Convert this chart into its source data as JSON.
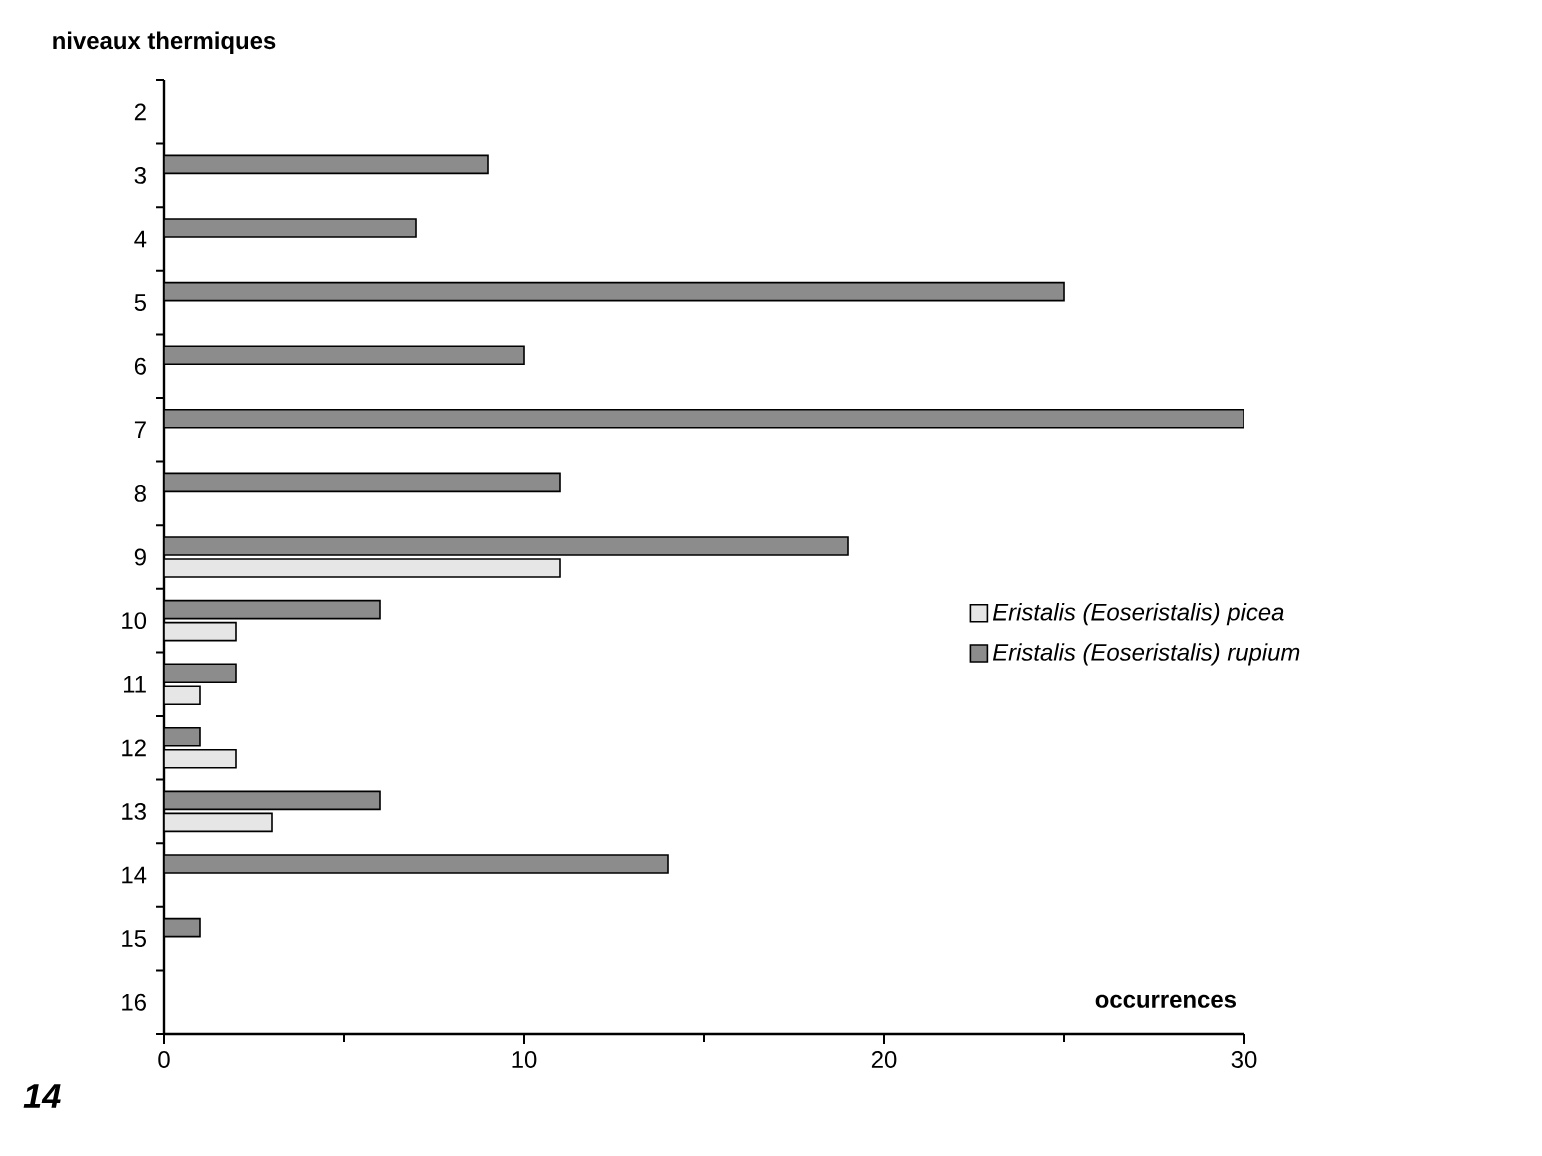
{
  "chart_data": {
    "type": "bar",
    "orientation": "horizontal",
    "ylabel": "niveaux thermiques",
    "xlabel": "occurrences",
    "categories": [
      "2",
      "3",
      "4",
      "5",
      "6",
      "7",
      "8",
      "9",
      "10",
      "11",
      "12",
      "13",
      "14",
      "15",
      "16"
    ],
    "series": [
      {
        "name": "Eristalis (Eoseristalis) picea",
        "color": "#e6e6e6",
        "values": [
          null,
          null,
          null,
          null,
          null,
          null,
          null,
          11,
          2,
          1,
          2,
          3,
          null,
          null,
          null
        ]
      },
      {
        "name": "Eristalis (Eoseristalis) rupium",
        "color": "#8c8c8c",
        "values": [
          null,
          9,
          7,
          25,
          10,
          30,
          11,
          19,
          6,
          2,
          1,
          6,
          14,
          1,
          null
        ]
      }
    ],
    "xlim": [
      0,
      30
    ],
    "xticks": [
      0,
      10,
      20,
      30
    ],
    "legend": "right",
    "grid": false,
    "annotations": [
      "14"
    ]
  }
}
